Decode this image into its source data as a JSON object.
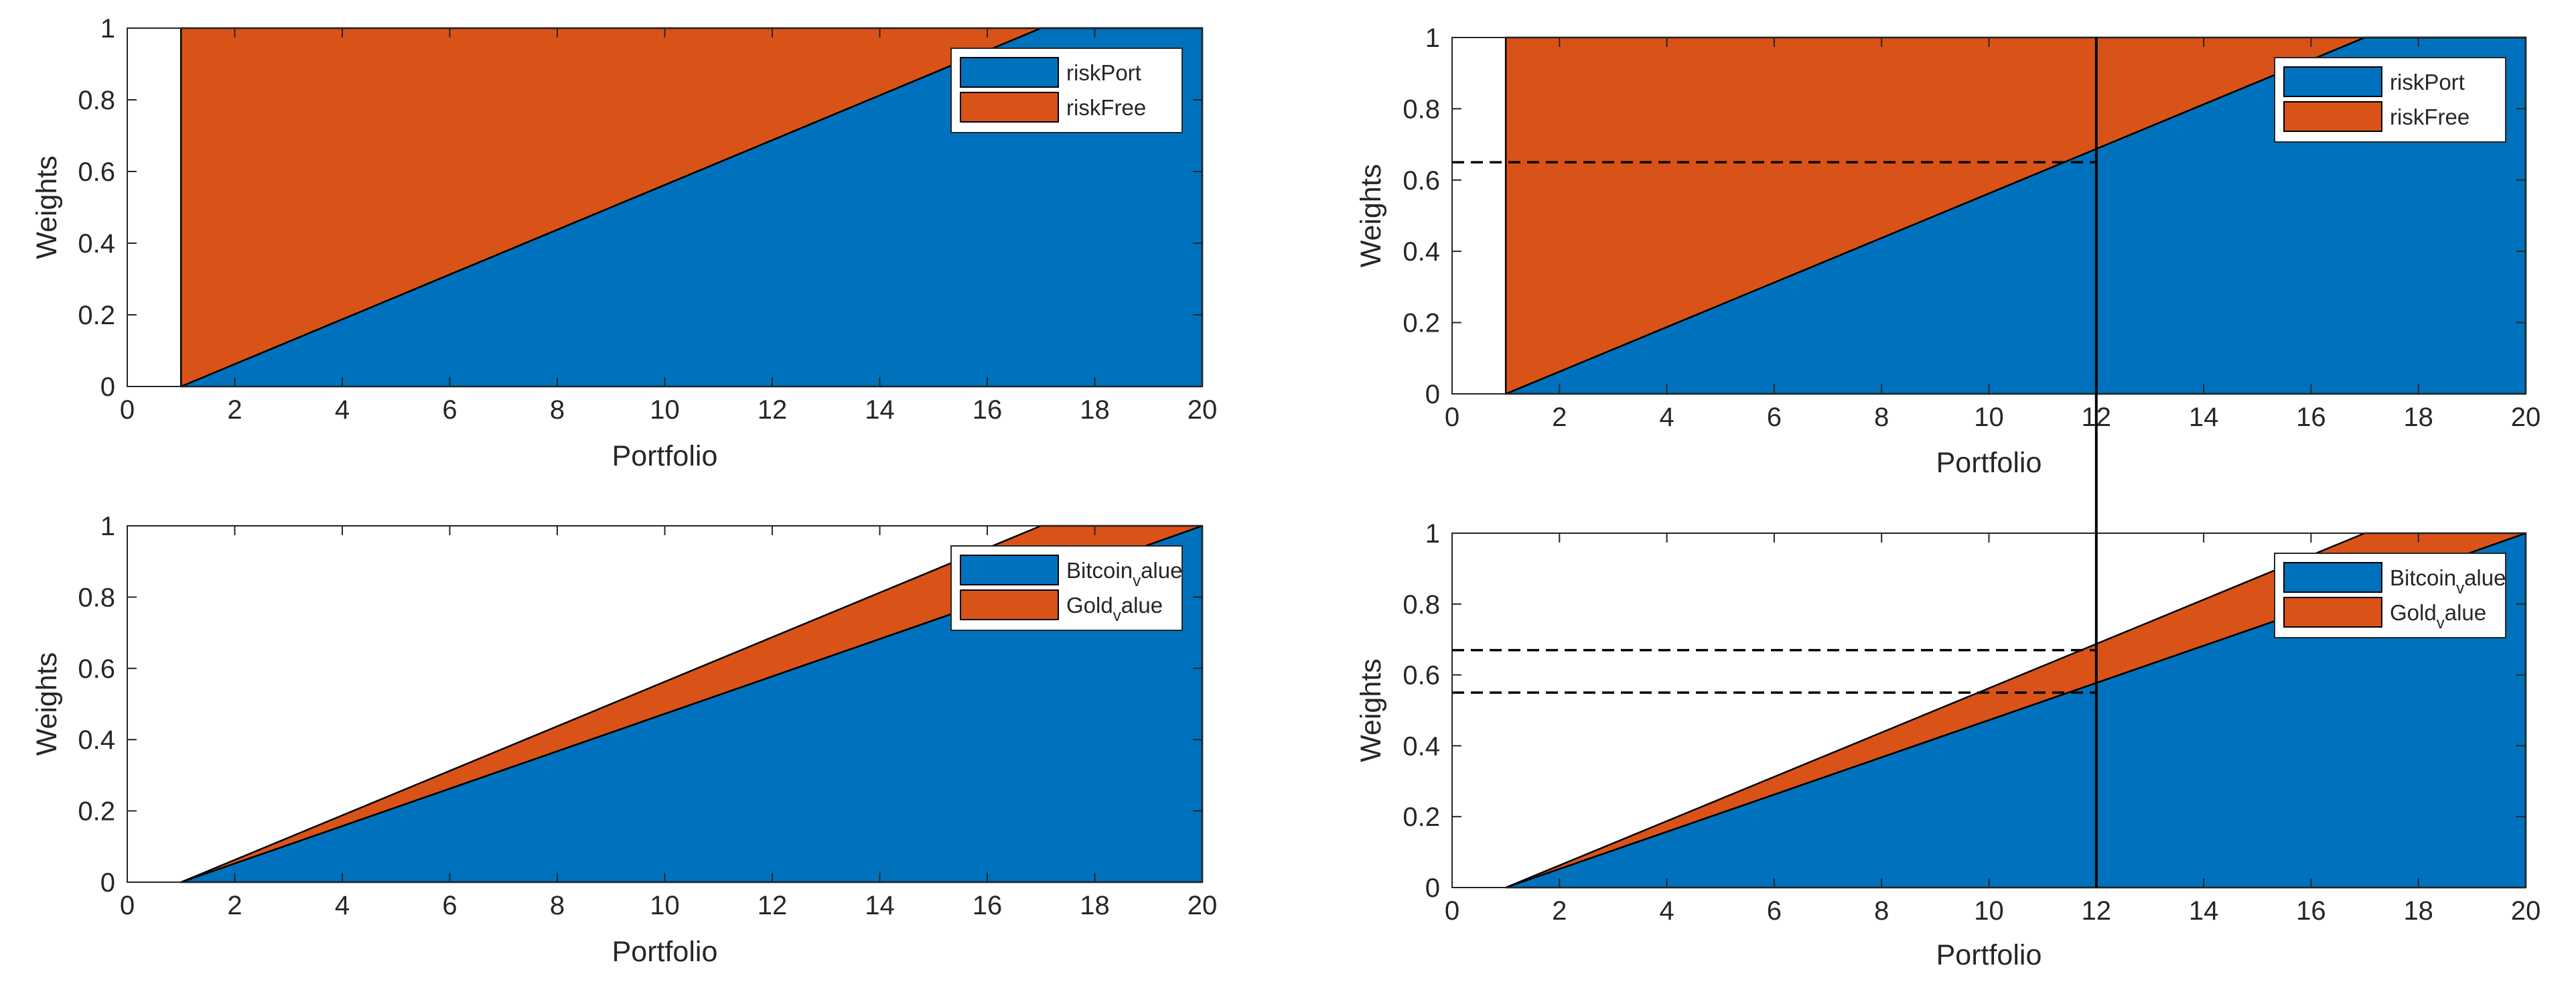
{
  "chart_data": [
    {
      "type": "area",
      "stacked": true,
      "xlabel": "Portfolio",
      "ylabel": "Weights",
      "xlim": [
        0,
        20
      ],
      "ylim": [
        0,
        1
      ],
      "xticks": [
        "0",
        "2",
        "4",
        "6",
        "8",
        "10",
        "12",
        "14",
        "16",
        "18",
        "20"
      ],
      "yticks": [
        "0",
        "0.2",
        "0.4",
        "0.6",
        "0.8",
        "1"
      ],
      "legend_position": "top-right",
      "x": [
        1,
        17,
        20
      ],
      "series": [
        {
          "name": "riskPort",
          "legend_main": "riskPort",
          "legend_sub": "",
          "legend_tail": "",
          "color": "#0072BD",
          "values": [
            0,
            1,
            1
          ]
        },
        {
          "name": "riskFree",
          "legend_main": "riskFree",
          "legend_sub": "",
          "legend_tail": "",
          "color": "#D95319",
          "values": [
            1,
            0,
            0
          ]
        }
      ],
      "reference_lines": []
    },
    {
      "type": "area",
      "stacked": true,
      "xlabel": "Portfolio",
      "ylabel": "Weights",
      "xlim": [
        0,
        20
      ],
      "ylim": [
        0,
        1
      ],
      "xticks": [
        "0",
        "2",
        "4",
        "6",
        "8",
        "10",
        "12",
        "14",
        "16",
        "18",
        "20"
      ],
      "yticks": [
        "0",
        "0.2",
        "0.4",
        "0.6",
        "0.8",
        "1"
      ],
      "legend_position": "top-right",
      "x": [
        1,
        17,
        20
      ],
      "series": [
        {
          "name": "riskPort",
          "legend_main": "riskPort",
          "legend_sub": "",
          "legend_tail": "",
          "color": "#0072BD",
          "values": [
            0,
            1,
            1
          ]
        },
        {
          "name": "riskFree",
          "legend_main": "riskFree",
          "legend_sub": "",
          "legend_tail": "",
          "color": "#D95319",
          "values": [
            1,
            0,
            0
          ]
        }
      ],
      "reference_lines": [
        {
          "orientation": "horizontal",
          "value": 0.65,
          "from_x": 0,
          "to_x": 12,
          "style": "dashed"
        }
      ]
    },
    {
      "type": "area",
      "stacked": true,
      "xlabel": "Portfolio",
      "ylabel": "Weights",
      "xlim": [
        0,
        20
      ],
      "ylim": [
        0,
        1
      ],
      "xticks": [
        "0",
        "2",
        "4",
        "6",
        "8",
        "10",
        "12",
        "14",
        "16",
        "18",
        "20"
      ],
      "yticks": [
        "0",
        "0.2",
        "0.4",
        "0.6",
        "0.8",
        "1"
      ],
      "legend_position": "top-right",
      "x": [
        1,
        17,
        20
      ],
      "series": [
        {
          "name": "Bitcoin_value",
          "legend_main": "Bitcoin",
          "legend_sub": "v",
          "legend_tail": "alue",
          "color": "#0072BD",
          "values": [
            0,
            0.84,
            1
          ]
        },
        {
          "name": "Gold_value",
          "legend_main": "Gold",
          "legend_sub": "v",
          "legend_tail": "alue",
          "color": "#D95319",
          "values": [
            0,
            0.16,
            0
          ]
        }
      ],
      "reference_lines": []
    },
    {
      "type": "area",
      "stacked": true,
      "xlabel": "Portfolio",
      "ylabel": "Weights",
      "xlim": [
        0,
        20
      ],
      "ylim": [
        0,
        1
      ],
      "xticks": [
        "0",
        "2",
        "4",
        "6",
        "8",
        "10",
        "12",
        "14",
        "16",
        "18",
        "20"
      ],
      "yticks": [
        "0",
        "0.2",
        "0.4",
        "0.6",
        "0.8",
        "1"
      ],
      "legend_position": "top-right",
      "x": [
        1,
        17,
        20
      ],
      "series": [
        {
          "name": "Bitcoin_value",
          "legend_main": "Bitcoin",
          "legend_sub": "v",
          "legend_tail": "alue",
          "color": "#0072BD",
          "values": [
            0,
            0.84,
            1
          ]
        },
        {
          "name": "Gold_value",
          "legend_main": "Gold",
          "legend_sub": "v",
          "legend_tail": "alue",
          "color": "#D95319",
          "values": [
            0,
            0.16,
            0
          ]
        }
      ],
      "reference_lines": [
        {
          "orientation": "horizontal",
          "value": 0.67,
          "from_x": 0,
          "to_x": 12,
          "style": "dashed"
        },
        {
          "orientation": "horizontal",
          "value": 0.55,
          "from_x": 0,
          "to_x": 12,
          "style": "dashed"
        }
      ]
    }
  ],
  "linked_vertical_line": {
    "x": 12,
    "charts": [
      1,
      3
    ],
    "style": "solid"
  }
}
